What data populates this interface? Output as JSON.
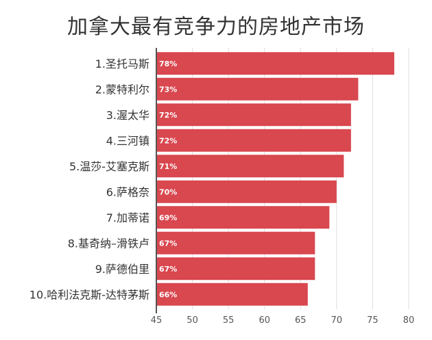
{
  "chart_data": {
    "type": "bar",
    "orientation": "horizontal",
    "title": "加拿大最有竞争力的房地产市场",
    "categories": [
      "1.圣托马斯",
      "2.蒙特利尔",
      "3.渥太华",
      "4.三河镇",
      "5.温莎-艾塞克斯",
      "6.萨格奈",
      "7.加蒂诺",
      "8.基奇纳–滑铁卢",
      "9.萨德伯里",
      "10.哈利法克斯-达特茅斯"
    ],
    "values": [
      78,
      73,
      72,
      72,
      71,
      70,
      69,
      67,
      67,
      66
    ],
    "data_labels": [
      "78%",
      "73%",
      "72%",
      "72%",
      "71%",
      "70%",
      "69%",
      "67%",
      "67%",
      "66%"
    ],
    "xlim": [
      45,
      80
    ],
    "x_ticks": [
      45,
      50,
      55,
      60,
      65,
      70,
      75,
      80
    ],
    "xlabel": "",
    "ylabel": "",
    "grid": true,
    "legend": "none",
    "bar_color": "#d9474f"
  }
}
